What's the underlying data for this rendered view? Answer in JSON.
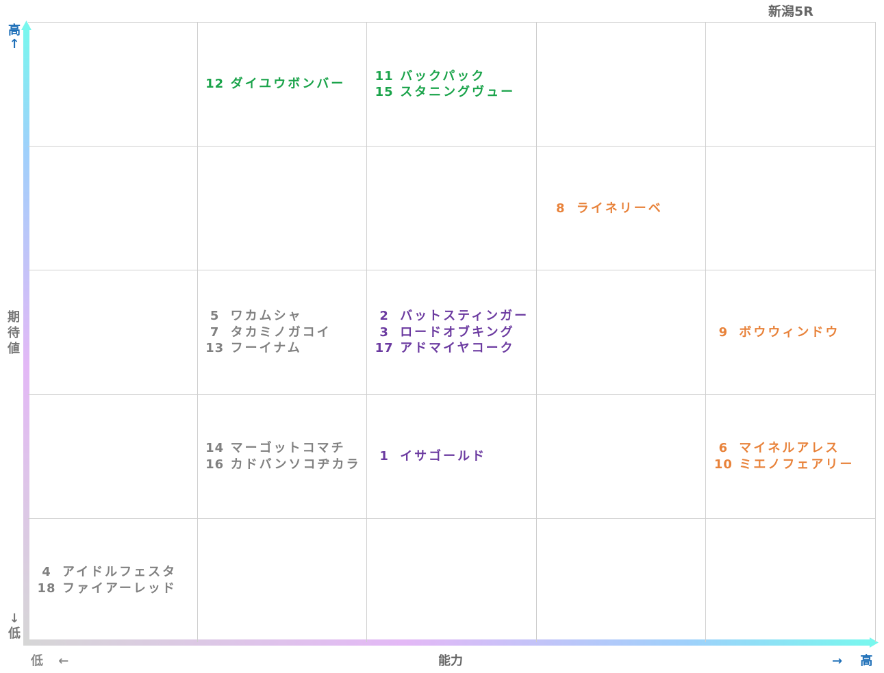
{
  "race_title": "新潟5R",
  "chart_data": {
    "type": "table",
    "grid": {
      "columns": 5,
      "rows": 5
    },
    "x_axis": {
      "label": "能力",
      "low_label": "低",
      "high_label": "高",
      "low_arrow": "←",
      "high_arrow": "→"
    },
    "y_axis": {
      "label": "期待値",
      "low_label": "低",
      "high_label": "高",
      "low_arrow": "↓",
      "high_arrow": "↑"
    },
    "colors": {
      "green": "#1aa34a",
      "orange": "#e8823a",
      "purple": "#6b3aa0",
      "gray": "#808080",
      "axis_blue": "#1e6fb8"
    },
    "cells": [
      {
        "col": 1,
        "row": 0,
        "color": "#1aa34a",
        "entries": [
          {
            "num": "12",
            "name": "ダイユウボンバー"
          }
        ]
      },
      {
        "col": 2,
        "row": 0,
        "color": "#1aa34a",
        "entries": [
          {
            "num": "11",
            "name": "バックパック"
          },
          {
            "num": "15",
            "name": "スタニングヴュー"
          }
        ]
      },
      {
        "col": 3,
        "row": 1,
        "color": "#e8823a",
        "entries": [
          {
            "num": "8",
            "name": "ライネリーベ"
          }
        ]
      },
      {
        "col": 1,
        "row": 2,
        "color": "#808080",
        "entries": [
          {
            "num": "5",
            "name": "ワカムシャ"
          },
          {
            "num": "7",
            "name": "タカミノガコイ"
          },
          {
            "num": "13",
            "name": "フーイナム"
          }
        ]
      },
      {
        "col": 2,
        "row": 2,
        "color": "#6b3aa0",
        "entries": [
          {
            "num": "2",
            "name": "バットスティンガー"
          },
          {
            "num": "3",
            "name": "ロードオブキング"
          },
          {
            "num": "17",
            "name": "アドマイヤコーク"
          }
        ]
      },
      {
        "col": 4,
        "row": 2,
        "color": "#e8823a",
        "entries": [
          {
            "num": "9",
            "name": "ボウウィンドウ"
          }
        ]
      },
      {
        "col": 1,
        "row": 3,
        "color": "#808080",
        "entries": [
          {
            "num": "14",
            "name": "マーゴットコマチ"
          },
          {
            "num": "16",
            "name": "カドバンソコヂカラ"
          }
        ]
      },
      {
        "col": 2,
        "row": 3,
        "color": "#6b3aa0",
        "entries": [
          {
            "num": "1",
            "name": "イサゴールド"
          }
        ]
      },
      {
        "col": 4,
        "row": 3,
        "color": "#e8823a",
        "entries": [
          {
            "num": "6",
            "name": "マイネルアレス"
          },
          {
            "num": "10",
            "name": "ミエノフェアリー"
          }
        ]
      },
      {
        "col": 0,
        "row": 4,
        "color": "#808080",
        "entries": [
          {
            "num": "4",
            "name": "アイドルフェスタ"
          },
          {
            "num": "18",
            "name": "ファイアーレッド"
          }
        ]
      }
    ]
  }
}
